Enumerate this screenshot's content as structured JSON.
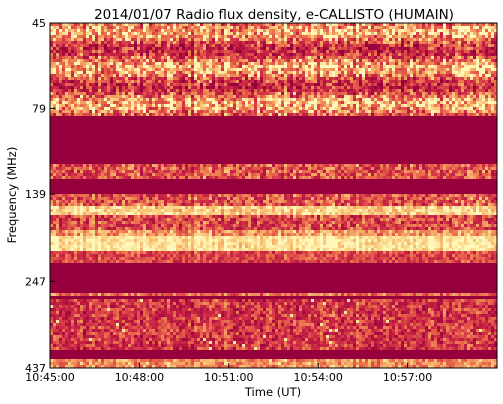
{
  "chart_data": {
    "type": "heatmap",
    "title": "2014/01/07  Radio flux density, e-CALLISTO (HUMAIN)",
    "xlabel": "Time (UT)",
    "ylabel": "Frequency (MHz)",
    "xlim": [
      "10:45:00",
      "11:00:00"
    ],
    "x_ticks": [
      "10:45:00",
      "10:48:00",
      "10:51:00",
      "10:54:00",
      "10:57:00"
    ],
    "y_ticks": [
      "45",
      "79",
      "139",
      "247",
      "437"
    ],
    "y_scale": "log",
    "grid": false,
    "colors": {
      "low": "#96003c",
      "mid": "#e05a45",
      "high": "#fff5b0",
      "background": "#ffffff",
      "frame": "#000000"
    }
  }
}
